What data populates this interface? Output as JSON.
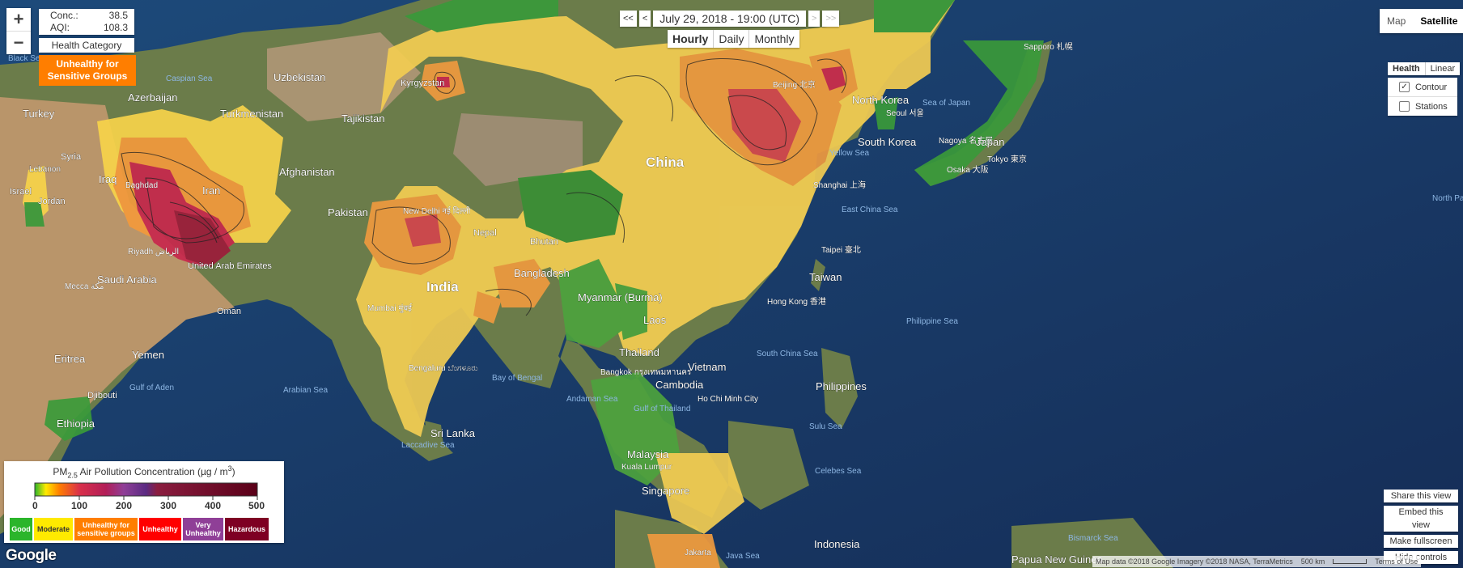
{
  "readout": {
    "conc_label": "Conc.:",
    "conc_value": "38.5",
    "aqi_label": "AQI:",
    "aqi_value": "108.3",
    "health_button": "Health Category",
    "category": "Unhealthy for Sensitive Groups",
    "category_color": "#ff7e00"
  },
  "zoom": {
    "in": "+",
    "out": "−"
  },
  "time": {
    "first": "<<",
    "prev": "<",
    "date": "July 29, 2018 - 19:00 (UTC)",
    "next": ">",
    "last": ">>",
    "periods": [
      "Hourly",
      "Daily",
      "Monthly"
    ],
    "active_period": "Hourly"
  },
  "map_type": {
    "map": "Map",
    "satellite": "Satellite",
    "active": "Satellite"
  },
  "scale_type": {
    "health": "Health",
    "linear": "Linear",
    "active": "Health"
  },
  "layers": {
    "contour": "Contour",
    "contour_checked": true,
    "stations": "Stations",
    "stations_checked": false
  },
  "buttons": {
    "share": "Share this view",
    "embed": "Embed this view",
    "fullscreen": "Make fullscreen",
    "hide": "Hide controls"
  },
  "legend": {
    "title_pm": "PM",
    "title_sub": "2.5",
    "title_rest": " Air Pollution Concentration (µg / m",
    "title_sup": "3",
    "title_end": ")",
    "ticks": [
      "0",
      "100",
      "200",
      "300",
      "400",
      "500"
    ],
    "categories": [
      {
        "label": "Good",
        "color": "#2bb52b",
        "text": "#ffffff"
      },
      {
        "label": "Moderate",
        "color": "#ffea00",
        "text": "#333333"
      },
      {
        "label": "Unhealthy for sensitive groups",
        "color": "#ff7e00",
        "text": "#ffffff"
      },
      {
        "label": "Unhealthy",
        "color": "#ff0000",
        "text": "#ffffff"
      },
      {
        "label": "Very Unhealthy",
        "color": "#8f3f97",
        "text": "#ffffff"
      },
      {
        "label": "Hazardous",
        "color": "#7e0023",
        "text": "#ffffff"
      }
    ]
  },
  "attribution": {
    "data": "Map data ©2018 Google Imagery ©2018 NASA, TerraMetrics",
    "scale": "500 km",
    "terms": "Terms of Use"
  },
  "google_logo": "Google",
  "places": {
    "countries": [
      "Uzbekistan",
      "Turkmenistan",
      "Tajikistan",
      "Kyrgyzstan",
      "Azerbaijan",
      "Turkey",
      "Syria",
      "Lebanon",
      "Israel",
      "Jordan",
      "Iraq",
      "Iran",
      "Afghanistan",
      "Pakistan",
      "Saudi Arabia",
      "United Arab Emirates",
      "Oman",
      "Yemen",
      "Eritrea",
      "Djibouti",
      "Ethiopia",
      "Nepal",
      "Bhutan",
      "Bangladesh",
      "India",
      "China",
      "North Korea",
      "South Korea",
      "Japan",
      "Taiwan",
      "Myanmar (Burma)",
      "Laos",
      "Thailand",
      "Vietnam",
      "Cambodia",
      "Philippines",
      "Malaysia",
      "Singapore",
      "Indonesia",
      "Sri Lanka",
      "Papua New Guinea"
    ],
    "cities": [
      "Beijing 北京",
      "Seoul 서울",
      "Shanghai 上海",
      "Taipei 臺北",
      "Hong Kong 香港",
      "Nagoya 名古屋",
      "Osaka 大阪",
      "Tokyo 東京",
      "Sapporo 札幌",
      "New Delhi नई दिल्ली",
      "Mumbai मुंबई",
      "Bengaluru ಬೆಂಗಳೂರು",
      "Bangkok กรุงเทพมหานคร",
      "Ho Chi Minh City",
      "Kuala Lumpur",
      "Jakarta",
      "Riyadh الرياض",
      "Mecca مكة",
      "Baghdad"
    ],
    "seas": [
      "Black Sea",
      "Caspian Sea",
      "Sea of Japan",
      "Yellow Sea",
      "East China Sea",
      "South China Sea",
      "Philippine Sea",
      "Arabian Sea",
      "Bay of Bengal",
      "Gulf of Aden",
      "Andaman Sea",
      "Gulf of Thailand",
      "Sulu Sea",
      "Celebes Sea",
      "Java Sea",
      "Laccadive Sea",
      "Bismarck Sea",
      "North Pacific Ocean"
    ]
  }
}
